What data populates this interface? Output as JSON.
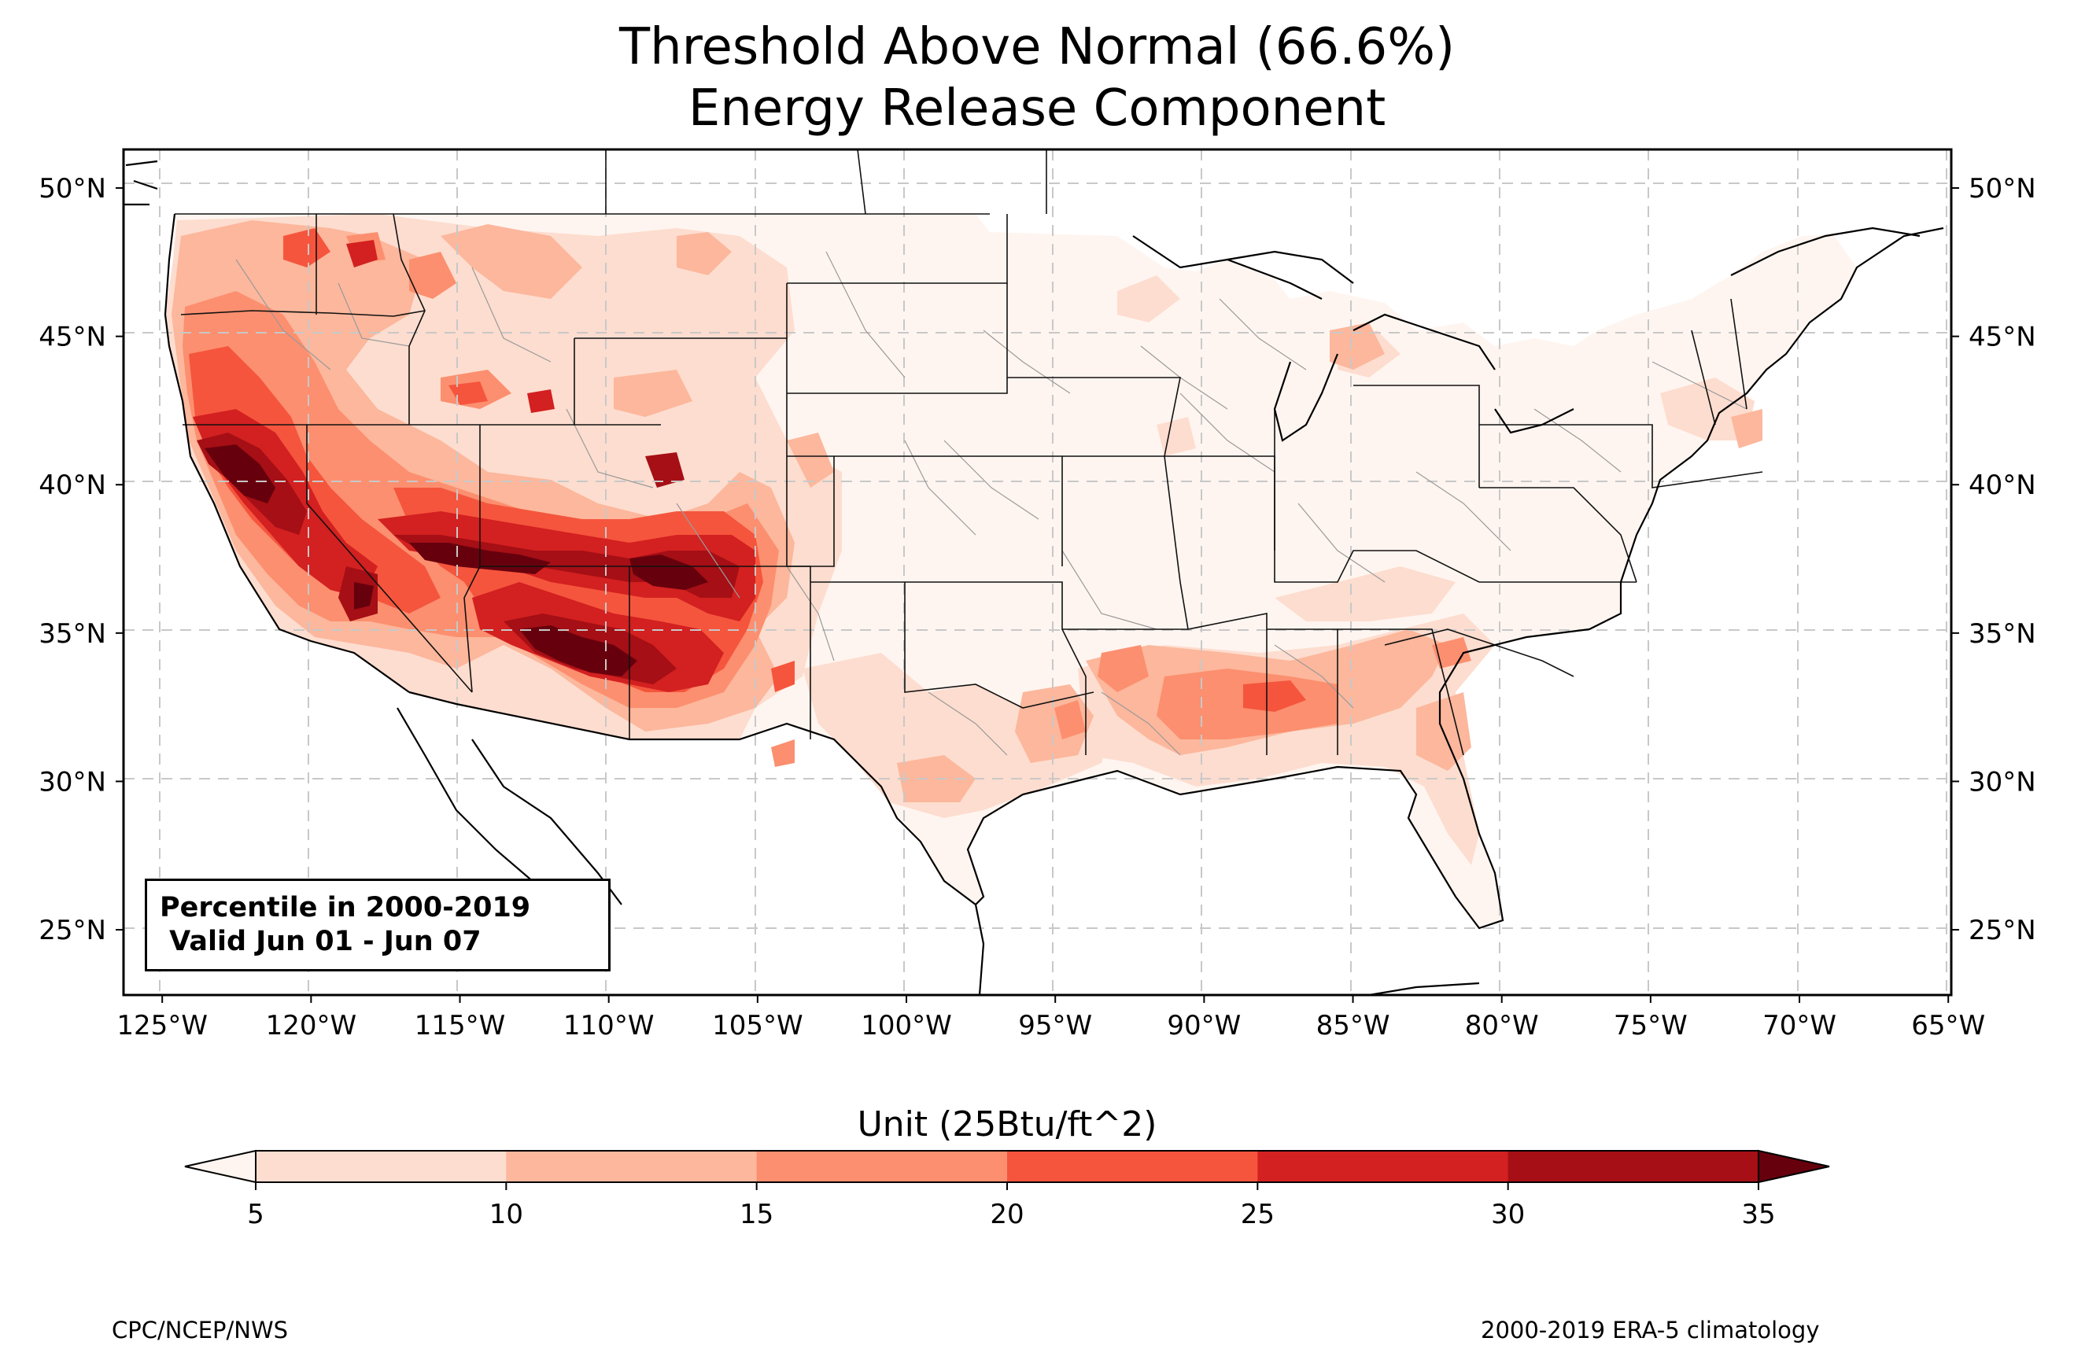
{
  "title": {
    "line1": "Threshold Above Normal (66.6%)",
    "line2": "Energy Release Component"
  },
  "map": {
    "region": "Contiguous United States",
    "lon_range": [
      -126.3,
      -64.9
    ],
    "lat_range": [
      22.8,
      51.3
    ],
    "gridlines": "dashed light gray",
    "lon_ticks": [
      "125°W",
      "120°W",
      "115°W",
      "110°W",
      "105°W",
      "100°W",
      "95°W",
      "90°W",
      "85°W",
      "80°W",
      "75°W",
      "70°W",
      "65°W"
    ],
    "lat_ticks": [
      "25°N",
      "30°N",
      "35°N",
      "40°N",
      "45°N",
      "50°N"
    ],
    "lat_tick_values": [
      25,
      30,
      35,
      40,
      45,
      50
    ],
    "lon_tick_values": [
      -125,
      -120,
      -115,
      -110,
      -105,
      -100,
      -95,
      -90,
      -85,
      -80,
      -75,
      -70,
      -65
    ]
  },
  "infobox": {
    "line1": "Percentile in 2000-2019",
    "line2": " Valid Jun 01 - Jun 07"
  },
  "colorbar": {
    "title": "Unit (25Btu/ft^2)",
    "ticks": [
      "5",
      "10",
      "15",
      "20",
      "25",
      "30",
      "35"
    ],
    "levels": [
      5,
      10,
      15,
      20,
      25,
      30,
      35
    ],
    "colors": [
      "#fdddcf",
      "#fcb79c",
      "#fc8f6f",
      "#f5553d",
      "#d32020",
      "#a50f15",
      "#67000d"
    ],
    "extend": "both",
    "under_color": "#fff5f0"
  },
  "footer": {
    "left": "CPC/NCEP/NWS",
    "right": "2000-2019 ERA-5 climatology"
  }
}
